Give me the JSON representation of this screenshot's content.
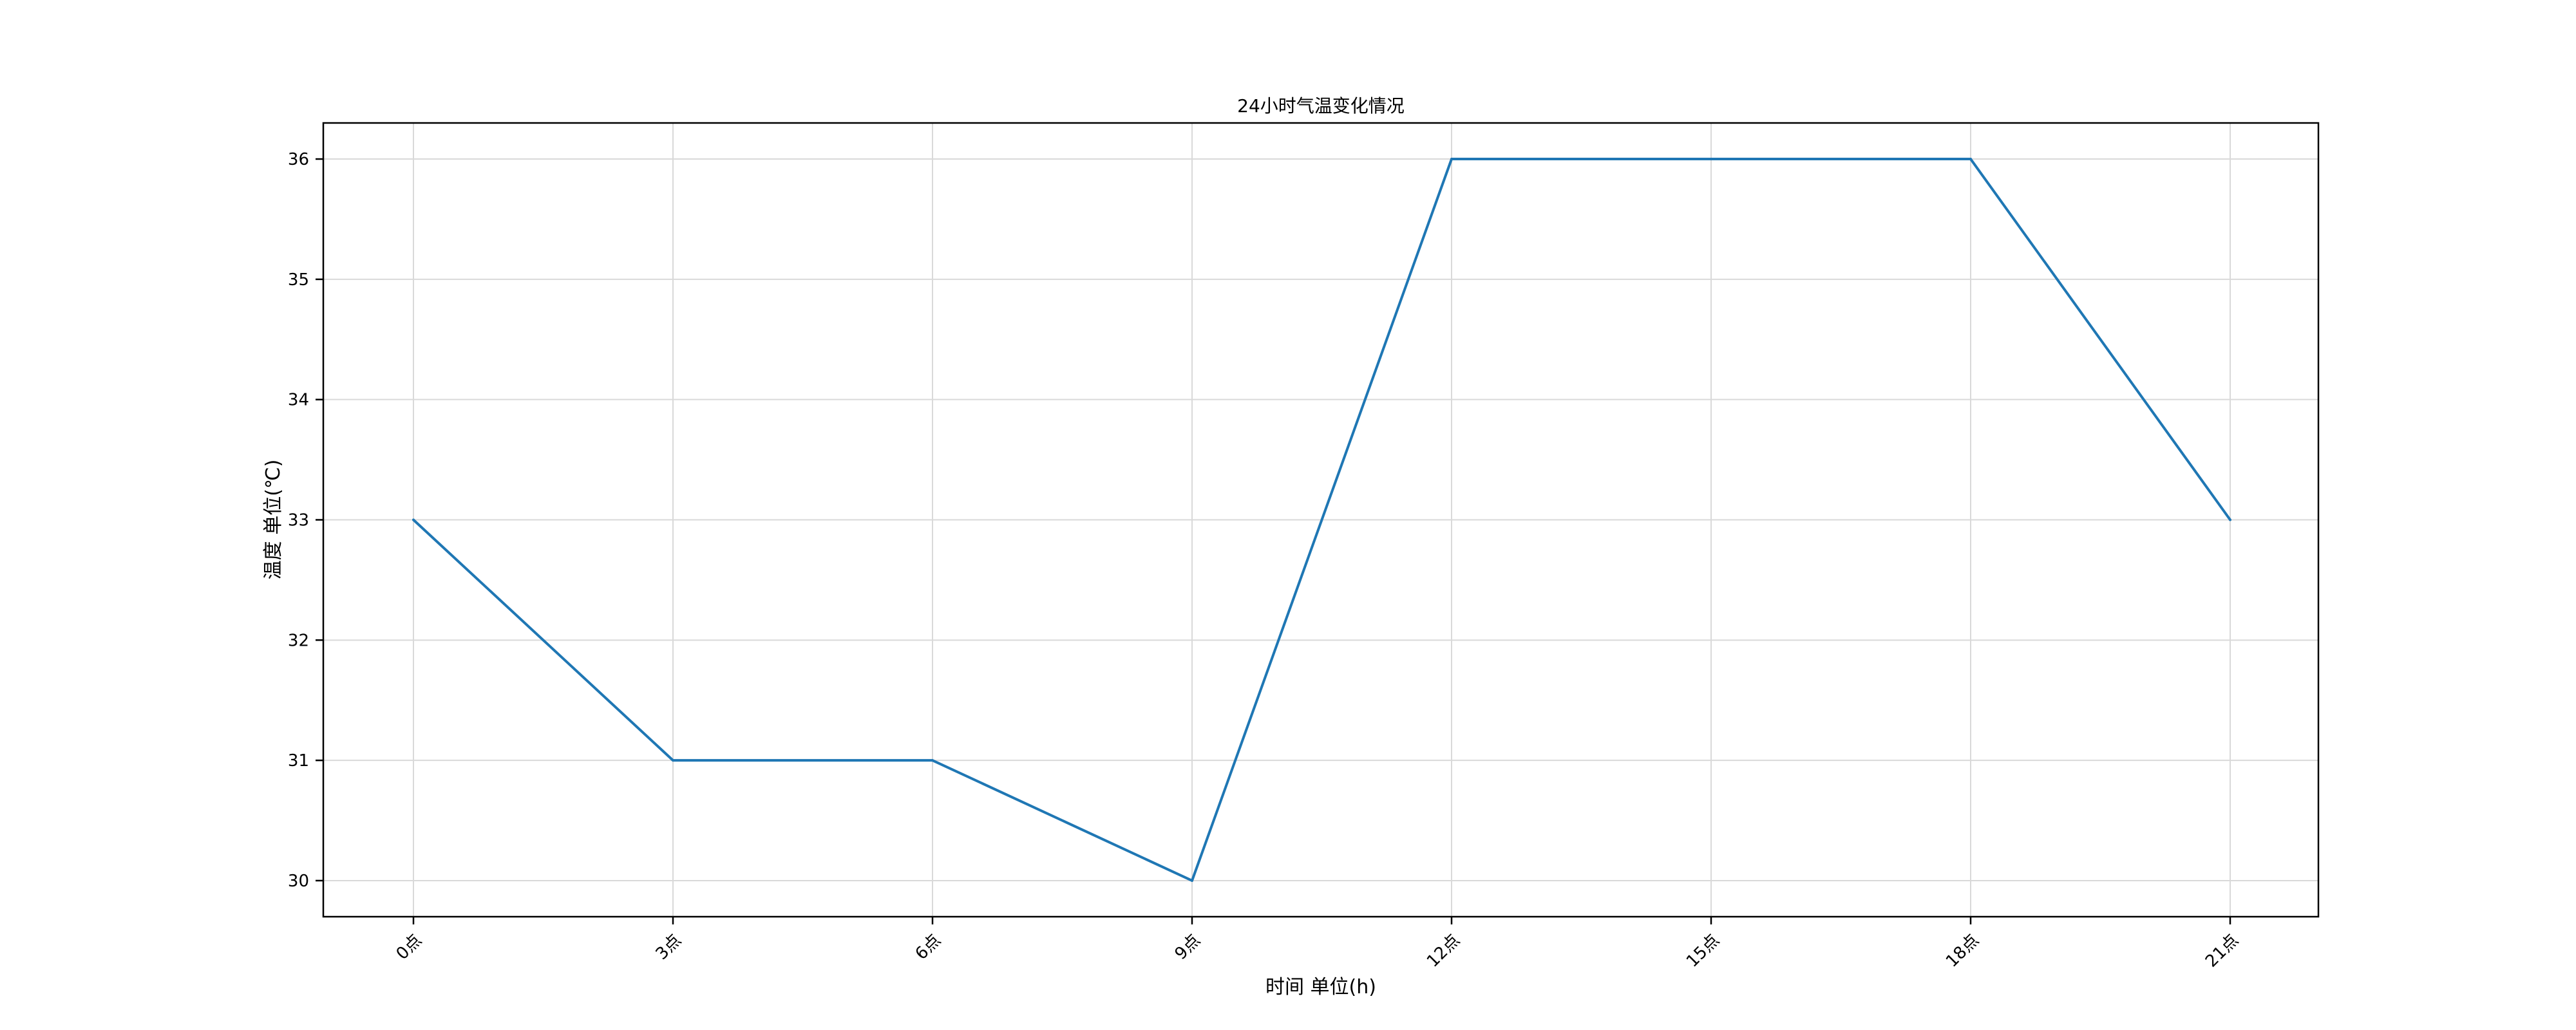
{
  "chart_data": {
    "type": "line",
    "title": "24小时气温变化情况",
    "xlabel": "时间 单位(h)",
    "ylabel": "温度 单位(℃)",
    "categories": [
      "0点",
      "3点",
      "6点",
      "9点",
      "12点",
      "15点",
      "18点",
      "21点"
    ],
    "series": [
      {
        "values": [
          33,
          31,
          31,
          30,
          36,
          36,
          36,
          33
        ],
        "color": "#1f77b4"
      }
    ],
    "ylim": [
      29.7,
      36.3
    ],
    "yticks": [
      30,
      31,
      32,
      33,
      34,
      35,
      36
    ],
    "grid": true,
    "legend": "none"
  }
}
